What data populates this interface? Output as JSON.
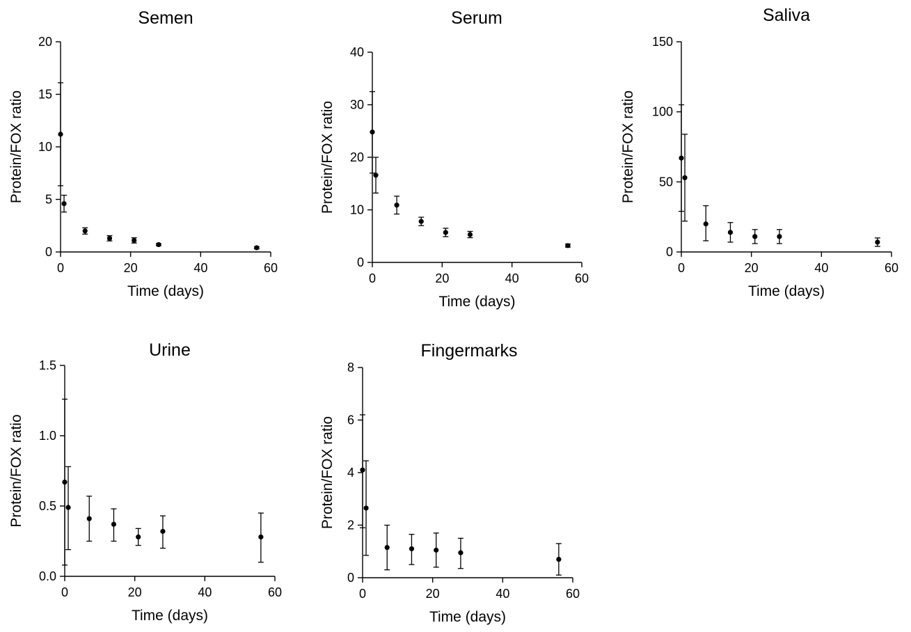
{
  "chart_data": [
    {
      "type": "scatter",
      "title": "Semen",
      "xlabel": "Time (days)",
      "ylabel": "Protein/FOX ratio",
      "xlim": [
        0,
        60
      ],
      "ylim": [
        0,
        20
      ],
      "xticks": [
        0,
        20,
        40,
        60
      ],
      "yticks": [
        0,
        5,
        10,
        15,
        20
      ],
      "xtick_labels": [
        "0",
        "20",
        "40",
        "60"
      ],
      "ytick_labels": [
        "0",
        "5",
        "10",
        "15",
        "20"
      ],
      "points": [
        {
          "x": 0,
          "y": 11.2,
          "err_low": 6.3,
          "err_high": 16.1
        },
        {
          "x": 1,
          "y": 4.6,
          "err_low": 3.8,
          "err_high": 5.4
        },
        {
          "x": 7,
          "y": 2.0,
          "err_low": 1.7,
          "err_high": 2.3
        },
        {
          "x": 14,
          "y": 1.3,
          "err_low": 1.05,
          "err_high": 1.55
        },
        {
          "x": 21,
          "y": 1.1,
          "err_low": 0.85,
          "err_high": 1.35
        },
        {
          "x": 28,
          "y": 0.7,
          "err_low": 0.6,
          "err_high": 0.8
        },
        {
          "x": 56,
          "y": 0.4,
          "err_low": 0.3,
          "err_high": 0.5
        }
      ]
    },
    {
      "type": "scatter",
      "title": "Serum",
      "xlabel": "Time (days)",
      "ylabel": "Protein/FOX ratio",
      "xlim": [
        0,
        60
      ],
      "ylim": [
        0,
        40
      ],
      "xticks": [
        0,
        20,
        40,
        60
      ],
      "yticks": [
        0,
        10,
        20,
        30,
        40
      ],
      "xtick_labels": [
        "0",
        "20",
        "40",
        "60"
      ],
      "ytick_labels": [
        "0",
        "10",
        "20",
        "30",
        "40"
      ],
      "points": [
        {
          "x": 0,
          "y": 24.8,
          "err_low": 17.0,
          "err_high": 32.5
        },
        {
          "x": 1,
          "y": 16.6,
          "err_low": 13.2,
          "err_high": 20.0
        },
        {
          "x": 7,
          "y": 10.9,
          "err_low": 9.2,
          "err_high": 12.6
        },
        {
          "x": 14,
          "y": 7.8,
          "err_low": 7.0,
          "err_high": 8.6
        },
        {
          "x": 21,
          "y": 5.7,
          "err_low": 4.9,
          "err_high": 6.5
        },
        {
          "x": 28,
          "y": 5.3,
          "err_low": 4.7,
          "err_high": 5.9
        },
        {
          "x": 56,
          "y": 3.2,
          "err_low": 2.9,
          "err_high": 3.5
        }
      ]
    },
    {
      "type": "scatter",
      "title": "Saliva",
      "xlabel": "Time (days)",
      "ylabel": "Protein/FOX ratio",
      "xlim": [
        0,
        60
      ],
      "ylim": [
        0,
        150
      ],
      "xticks": [
        0,
        20,
        40,
        60
      ],
      "yticks": [
        0,
        50,
        100,
        150
      ],
      "xtick_labels": [
        "0",
        "20",
        "40",
        "60"
      ],
      "ytick_labels": [
        "0",
        "50",
        "100",
        "150"
      ],
      "points": [
        {
          "x": 0,
          "y": 67,
          "err_low": 29,
          "err_high": 105
        },
        {
          "x": 1,
          "y": 53,
          "err_low": 22,
          "err_high": 84
        },
        {
          "x": 7,
          "y": 20,
          "err_low": 8,
          "err_high": 33
        },
        {
          "x": 14,
          "y": 14,
          "err_low": 7,
          "err_high": 21
        },
        {
          "x": 21,
          "y": 11,
          "err_low": 6,
          "err_high": 16
        },
        {
          "x": 28,
          "y": 11,
          "err_low": 6,
          "err_high": 16
        },
        {
          "x": 56,
          "y": 7,
          "err_low": 4,
          "err_high": 10
        }
      ]
    },
    {
      "type": "scatter",
      "title": "Urine",
      "xlabel": "Time (days)",
      "ylabel": "Protein/FOX ratio",
      "xlim": [
        0,
        60
      ],
      "ylim": [
        0,
        1.5
      ],
      "xticks": [
        0,
        20,
        40,
        60
      ],
      "yticks": [
        0,
        0.5,
        1.0,
        1.5
      ],
      "xtick_labels": [
        "0",
        "20",
        "40",
        "60"
      ],
      "ytick_labels": [
        "0.0",
        "0.5",
        "1.0",
        "1.5"
      ],
      "points": [
        {
          "x": 0,
          "y": 0.67,
          "err_low": 0.08,
          "err_high": 1.26
        },
        {
          "x": 1,
          "y": 0.49,
          "err_low": 0.19,
          "err_high": 0.78
        },
        {
          "x": 7,
          "y": 0.41,
          "err_low": 0.25,
          "err_high": 0.57
        },
        {
          "x": 14,
          "y": 0.37,
          "err_low": 0.25,
          "err_high": 0.48
        },
        {
          "x": 21,
          "y": 0.28,
          "err_low": 0.22,
          "err_high": 0.34
        },
        {
          "x": 28,
          "y": 0.32,
          "err_low": 0.2,
          "err_high": 0.43
        },
        {
          "x": 56,
          "y": 0.28,
          "err_low": 0.1,
          "err_high": 0.45
        }
      ]
    },
    {
      "type": "scatter",
      "title": "Fingermarks",
      "xlabel": "Time (days)",
      "ylabel": "Protein/FOX ratio",
      "xlim": [
        0,
        60
      ],
      "ylim": [
        0,
        8
      ],
      "xticks": [
        0,
        20,
        40,
        60
      ],
      "yticks": [
        0,
        2,
        4,
        6,
        8
      ],
      "xtick_labels": [
        "0",
        "20",
        "40",
        "60"
      ],
      "ytick_labels": [
        "0",
        "2",
        "4",
        "6",
        "8"
      ],
      "points": [
        {
          "x": 0,
          "y": 4.1,
          "err_low": 1.9,
          "err_high": 6.2
        },
        {
          "x": 1,
          "y": 2.65,
          "err_low": 0.85,
          "err_high": 4.45
        },
        {
          "x": 7,
          "y": 1.15,
          "err_low": 0.3,
          "err_high": 2.0
        },
        {
          "x": 14,
          "y": 1.1,
          "err_low": 0.5,
          "err_high": 1.65
        },
        {
          "x": 21,
          "y": 1.05,
          "err_low": 0.4,
          "err_high": 1.7
        },
        {
          "x": 28,
          "y": 0.95,
          "err_low": 0.35,
          "err_high": 1.5
        },
        {
          "x": 56,
          "y": 0.7,
          "err_low": 0.1,
          "err_high": 1.3
        }
      ]
    }
  ]
}
